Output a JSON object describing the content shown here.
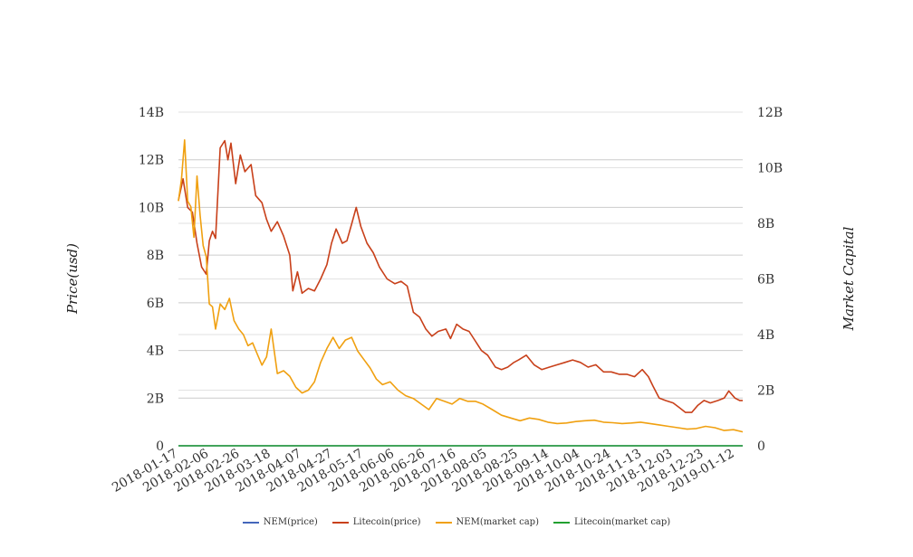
{
  "chart_data": {
    "type": "line",
    "yaxis_left": {
      "label": "Price(usd)",
      "range": [
        0,
        14000000000
      ],
      "ticks": [
        "0",
        "2B",
        "4B",
        "6B",
        "8B",
        "10B",
        "12B",
        "14B"
      ]
    },
    "yaxis_right": {
      "label": "Market Capital",
      "range": [
        0,
        12000000000
      ],
      "ticks": [
        "0",
        "2B",
        "4B",
        "6B",
        "8B",
        "10B",
        "12B"
      ]
    },
    "xaxis": {
      "range": [
        "2018-01-17",
        "2019-01-17"
      ],
      "ticks": [
        "2018-01-17",
        "2018-02-06",
        "2018-02-26",
        "2018-03-18",
        "2018-04-07",
        "2018-04-27",
        "2018-05-17",
        "2018-06-06",
        "2018-06-26",
        "2018-07-16",
        "2018-08-05",
        "2018-08-25",
        "2018-09-14",
        "2018-10-04",
        "2018-10-24",
        "2018-11-13",
        "2018-12-03",
        "2018-12-23",
        "2019-01-12"
      ]
    },
    "grid": true,
    "legend_position": "bottom",
    "series": [
      {
        "name": "NEM(price)",
        "axis": "left",
        "color": "#4466bb",
        "x": [
          "2018-01-17",
          "2019-01-17"
        ],
        "y": [
          0,
          0
        ]
      },
      {
        "name": "Litecoin(price)",
        "axis": "left",
        "color": "#c8401a",
        "x": [
          "2018-01-17",
          "2018-01-20",
          "2018-01-23",
          "2018-01-26",
          "2018-01-29",
          "2018-02-01",
          "2018-02-04",
          "2018-02-06",
          "2018-02-08",
          "2018-02-10",
          "2018-02-13",
          "2018-02-16",
          "2018-02-18",
          "2018-02-20",
          "2018-02-23",
          "2018-02-26",
          "2018-03-01",
          "2018-03-05",
          "2018-03-08",
          "2018-03-12",
          "2018-03-15",
          "2018-03-18",
          "2018-03-22",
          "2018-03-26",
          "2018-03-30",
          "2018-04-01",
          "2018-04-04",
          "2018-04-07",
          "2018-04-11",
          "2018-04-15",
          "2018-04-19",
          "2018-04-23",
          "2018-04-26",
          "2018-04-29",
          "2018-05-03",
          "2018-05-06",
          "2018-05-09",
          "2018-05-12",
          "2018-05-15",
          "2018-05-19",
          "2018-05-23",
          "2018-05-27",
          "2018-06-01",
          "2018-06-06",
          "2018-06-10",
          "2018-06-14",
          "2018-06-18",
          "2018-06-22",
          "2018-06-26",
          "2018-06-30",
          "2018-07-04",
          "2018-07-09",
          "2018-07-12",
          "2018-07-16",
          "2018-07-20",
          "2018-07-24",
          "2018-07-28",
          "2018-08-01",
          "2018-08-05",
          "2018-08-10",
          "2018-08-14",
          "2018-08-18",
          "2018-08-22",
          "2018-08-25",
          "2018-08-30",
          "2018-09-04",
          "2018-09-09",
          "2018-09-14",
          "2018-09-19",
          "2018-09-24",
          "2018-09-29",
          "2018-10-04",
          "2018-10-09",
          "2018-10-14",
          "2018-10-19",
          "2018-10-24",
          "2018-10-29",
          "2018-11-03",
          "2018-11-08",
          "2018-11-13",
          "2018-11-17",
          "2018-11-20",
          "2018-11-24",
          "2018-11-28",
          "2018-12-03",
          "2018-12-07",
          "2018-12-11",
          "2018-12-15",
          "2018-12-19",
          "2018-12-23",
          "2018-12-27",
          "2019-01-01",
          "2019-01-05",
          "2019-01-08",
          "2019-01-12",
          "2019-01-15",
          "2019-01-17"
        ],
        "y": [
          10300000000.0,
          11200000000.0,
          10000000000.0,
          9800000000.0,
          8500000000.0,
          7500000000.0,
          7200000000.0,
          8600000000.0,
          9000000000.0,
          8700000000.0,
          12500000000.0,
          12800000000.0,
          12000000000.0,
          12700000000.0,
          11000000000.0,
          12200000000.0,
          11500000000.0,
          11800000000.0,
          10500000000.0,
          10200000000.0,
          9500000000.0,
          9000000000.0,
          9400000000.0,
          8800000000.0,
          8000000000.0,
          6500000000.0,
          7300000000.0,
          6400000000.0,
          6600000000.0,
          6500000000.0,
          7000000000.0,
          7600000000.0,
          8500000000.0,
          9100000000.0,
          8500000000.0,
          8600000000.0,
          9300000000.0,
          10000000000.0,
          9200000000.0,
          8500000000.0,
          8100000000.0,
          7500000000.0,
          7000000000.0,
          6800000000.0,
          6900000000.0,
          6700000000.0,
          5600000000.0,
          5400000000.0,
          4900000000.0,
          4600000000.0,
          4800000000.0,
          4900000000.0,
          4500000000.0,
          5100000000.0,
          4900000000.0,
          4800000000.0,
          4400000000.0,
          4000000000.0,
          3800000000.0,
          3300000000.0,
          3200000000.0,
          3300000000.0,
          3500000000.0,
          3600000000.0,
          3800000000.0,
          3400000000.0,
          3200000000.0,
          3300000000.0,
          3400000000.0,
          3500000000.0,
          3600000000.0,
          3500000000.0,
          3300000000.0,
          3400000000.0,
          3100000000.0,
          3100000000.0,
          3000000000.0,
          3000000000.0,
          2900000000.0,
          3200000000.0,
          2900000000.0,
          2500000000.0,
          2000000000.0,
          1900000000.0,
          1800000000.0,
          1600000000.0,
          1400000000.0,
          1400000000.0,
          1700000000.0,
          1900000000.0,
          1800000000.0,
          1900000000.0,
          2000000000.0,
          2300000000.0,
          2000000000.0,
          1900000000.0,
          1900000000.0
        ]
      },
      {
        "name": "NEM(market cap)",
        "axis": "right",
        "color": "#f0a010",
        "x": [
          "2018-01-17",
          "2018-01-19",
          "2018-01-21",
          "2018-01-23",
          "2018-01-25",
          "2018-01-27",
          "2018-01-29",
          "2018-01-31",
          "2018-02-02",
          "2018-02-04",
          "2018-02-06",
          "2018-02-08",
          "2018-02-10",
          "2018-02-13",
          "2018-02-16",
          "2018-02-19",
          "2018-02-22",
          "2018-02-25",
          "2018-02-28",
          "2018-03-03",
          "2018-03-06",
          "2018-03-09",
          "2018-03-12",
          "2018-03-15",
          "2018-03-18",
          "2018-03-22",
          "2018-03-26",
          "2018-03-30",
          "2018-04-03",
          "2018-04-07",
          "2018-04-11",
          "2018-04-15",
          "2018-04-19",
          "2018-04-23",
          "2018-04-27",
          "2018-05-01",
          "2018-05-05",
          "2018-05-09",
          "2018-05-13",
          "2018-05-17",
          "2018-05-21",
          "2018-05-25",
          "2018-05-29",
          "2018-06-03",
          "2018-06-08",
          "2018-06-13",
          "2018-06-18",
          "2018-06-23",
          "2018-06-28",
          "2018-07-03",
          "2018-07-08",
          "2018-07-13",
          "2018-07-18",
          "2018-07-23",
          "2018-07-28",
          "2018-08-02",
          "2018-08-08",
          "2018-08-14",
          "2018-08-20",
          "2018-08-26",
          "2018-09-01",
          "2018-09-07",
          "2018-09-13",
          "2018-09-19",
          "2018-09-25",
          "2018-10-01",
          "2018-10-07",
          "2018-10-13",
          "2018-10-19",
          "2018-10-25",
          "2018-10-31",
          "2018-11-06",
          "2018-11-12",
          "2018-11-18",
          "2018-11-24",
          "2018-11-30",
          "2018-12-06",
          "2018-12-12",
          "2018-12-18",
          "2018-12-24",
          "2018-12-30",
          "2019-01-05",
          "2019-01-11",
          "2019-01-17"
        ],
        "y": [
          8800000000.0,
          9600000000.0,
          11000000000.0,
          8800000000.0,
          8600000000.0,
          7500000000.0,
          9700000000.0,
          8300000000.0,
          7200000000.0,
          6800000000.0,
          5100000000.0,
          5000000000.0,
          4200000000.0,
          5100000000.0,
          4900000000.0,
          5300000000.0,
          4500000000.0,
          4200000000.0,
          4000000000.0,
          3600000000.0,
          3700000000.0,
          3300000000.0,
          2900000000.0,
          3200000000.0,
          4200000000.0,
          2600000000.0,
          2700000000.0,
          2500000000.0,
          2100000000.0,
          1900000000.0,
          2000000000.0,
          2300000000.0,
          3000000000.0,
          3500000000.0,
          3900000000.0,
          3500000000.0,
          3800000000.0,
          3900000000.0,
          3400000000.0,
          3100000000.0,
          2800000000.0,
          2400000000.0,
          2200000000.0,
          2300000000.0,
          2000000000.0,
          1800000000.0,
          1700000000.0,
          1500000000.0,
          1300000000.0,
          1700000000.0,
          1600000000.0,
          1500000000.0,
          1700000000.0,
          1600000000.0,
          1600000000.0,
          1500000000.0,
          1300000000.0,
          1100000000.0,
          1000000000.0,
          900000000.0,
          1000000000.0,
          950000000.0,
          850000000.0,
          800000000.0,
          820000000.0,
          870000000.0,
          900000000.0,
          920000000.0,
          850000000.0,
          830000000.0,
          800000000.0,
          820000000.0,
          850000000.0,
          800000000.0,
          750000000.0,
          700000000.0,
          650000000.0,
          600000000.0,
          620000000.0,
          700000000.0,
          650000000.0,
          550000000.0,
          580000000.0,
          500000000.0
        ]
      },
      {
        "name": "Litecoin(market cap)",
        "axis": "right",
        "color": "#22a030",
        "x": [
          "2018-01-17",
          "2019-01-17"
        ],
        "y": [
          0,
          0
        ]
      }
    ]
  }
}
